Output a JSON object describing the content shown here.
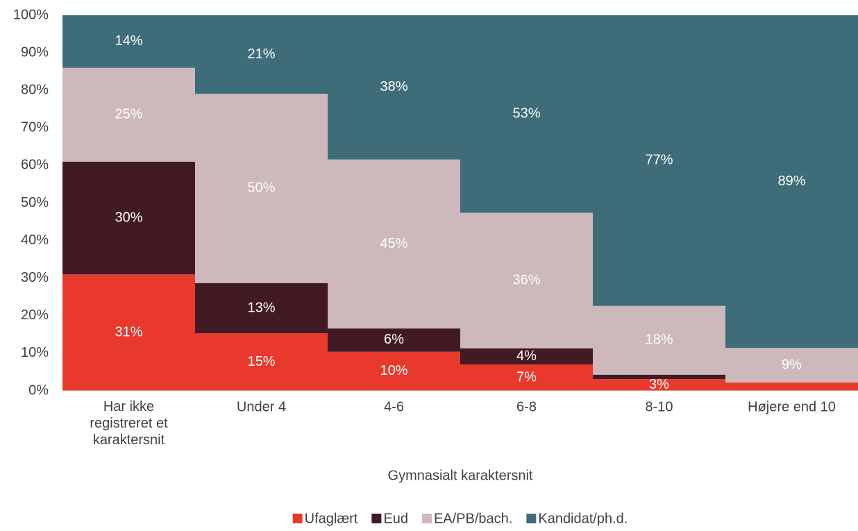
{
  "chart_data": {
    "type": "stacked_bar",
    "xlabel": "Gymnasialt karaktersnit",
    "categories": [
      "Har ikke registreret et karaktersnit",
      "Under 4",
      "4-6",
      "6-8",
      "8-10",
      "Højere end 10"
    ],
    "series": [
      {
        "name": "Ufaglært",
        "color": "#e8392c",
        "values": [
          31,
          15.3,
          10.4,
          7,
          3.1,
          2.2
        ],
        "value_labels": [
          "31%",
          "15%",
          "10%",
          "7%",
          "3%",
          null
        ]
      },
      {
        "name": "Eud",
        "color": "#421a24",
        "values": [
          30,
          13.4,
          6.2,
          4.3,
          1.2,
          0
        ],
        "value_labels": [
          "30%",
          "13%",
          "6%",
          "4%",
          null,
          null
        ]
      },
      {
        "name": "EA/PB/bach.",
        "color": "#cdb8bb",
        "values": [
          25,
          50.4,
          45,
          36.1,
          18.3,
          9.2
        ],
        "value_labels": [
          "25%",
          "50%",
          "45%",
          "36%",
          "18%",
          "9%"
        ]
      },
      {
        "name": "Kandidat/ph.d.",
        "color": "#3e6c78",
        "values": [
          14,
          20.9,
          38.4,
          52.6,
          77.4,
          88.6
        ],
        "value_labels": [
          "14%",
          "21%",
          "38%",
          "53%",
          "77%",
          "89%"
        ]
      }
    ],
    "ylim": [
      0,
      100
    ],
    "yticks": [
      {
        "value": 0,
        "label": "0%"
      },
      {
        "value": 10,
        "label": "10%"
      },
      {
        "value": 20,
        "label": "20%"
      },
      {
        "value": 30,
        "label": "30%"
      },
      {
        "value": 40,
        "label": "40%"
      },
      {
        "value": 50,
        "label": "50%"
      },
      {
        "value": 60,
        "label": "60%"
      },
      {
        "value": 70,
        "label": "70%"
      },
      {
        "value": 80,
        "label": "80%"
      },
      {
        "value": 90,
        "label": "90%"
      },
      {
        "value": 100,
        "label": "100%"
      }
    ],
    "legend": "bottom"
  }
}
